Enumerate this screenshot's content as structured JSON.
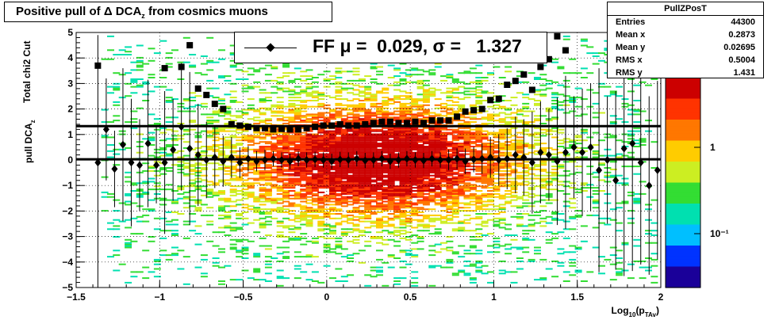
{
  "title": "Positive pull of Δ DCA_z from cosmics muons",
  "legend": {
    "label": "FF μ =  0.029, σ =   1.327"
  },
  "stats": {
    "name": "PullZPosT",
    "rows": [
      {
        "label": "Entries",
        "value": "44300"
      },
      {
        "label": "Mean x",
        "value": "0.2873"
      },
      {
        "label": "Mean y",
        "value": "0.02695"
      },
      {
        "label": "RMS x",
        "value": "0.5004"
      },
      {
        "label": "RMS y",
        "value": "1.431"
      }
    ]
  },
  "colorbar": {
    "ticks": [
      "1",
      "10⁻¹"
    ],
    "palette": [
      "#1a0099",
      "#0033ff",
      "#00bfff",
      "#00e0b0",
      "#33dd33",
      "#ccee22",
      "#ffcc00",
      "#ff7700",
      "#ff3300",
      "#cc0000"
    ]
  },
  "chart_data": {
    "type": "scatter",
    "title": "Positive pull of Δ DCA_z from cosmics muons",
    "xlabel": "Log10(pTAv)",
    "ylabel": "pull DCAz",
    "ylabel_secondary": "Total chi2 Cut",
    "xlim": [
      -1.5,
      2.0
    ],
    "ylim": [
      -5,
      5
    ],
    "x_ticks": [
      "−1.5",
      "−1",
      "−0.5",
      "0",
      "0.5",
      "1",
      "1.5",
      "2"
    ],
    "y_ticks": [
      "−5",
      "−4",
      "−3",
      "−2",
      "−1",
      "0",
      "1",
      "2",
      "3",
      "4",
      "5"
    ],
    "grid": true,
    "series": [
      {
        "name": "mean",
        "marker": "diamond",
        "x": [
          -1.37,
          -1.32,
          -1.27,
          -1.22,
          -1.17,
          -1.12,
          -1.07,
          -1.02,
          -0.97,
          -0.92,
          -0.87,
          -0.82,
          -0.77,
          -0.72,
          -0.67,
          -0.62,
          -0.57,
          -0.52,
          -0.47,
          -0.42,
          -0.37,
          -0.32,
          -0.27,
          -0.22,
          -0.17,
          -0.12,
          -0.07,
          -0.02,
          0.03,
          0.08,
          0.13,
          0.18,
          0.23,
          0.28,
          0.33,
          0.38,
          0.43,
          0.48,
          0.53,
          0.58,
          0.63,
          0.68,
          0.73,
          0.78,
          0.83,
          0.88,
          0.93,
          0.98,
          1.03,
          1.08,
          1.13,
          1.18,
          1.23,
          1.28,
          1.33,
          1.38,
          1.43,
          1.48,
          1.53,
          1.58,
          1.63,
          1.68,
          1.73,
          1.78,
          1.83,
          1.88,
          1.93,
          1.98
        ],
        "y": [
          -0.1,
          1.2,
          -0.35,
          0.6,
          -0.1,
          -0.2,
          0.65,
          -0.2,
          -0.1,
          0.4,
          1.3,
          0.45,
          0.2,
          0.0,
          0.1,
          -0.05,
          0.1,
          -0.1,
          0.05,
          -0.05,
          0.0,
          0.05,
          0.0,
          -0.05,
          0.05,
          0.0,
          0.02,
          0.0,
          -0.05,
          0.02,
          0.0,
          0.05,
          -0.02,
          0.0,
          0.05,
          -0.05,
          0.0,
          0.05,
          0.0,
          -0.02,
          0.05,
          0.0,
          0.0,
          0.05,
          -0.05,
          0.02,
          0.05,
          0.1,
          0.0,
          0.05,
          0.2,
          0.1,
          -0.1,
          0.3,
          0.2,
          -0.05,
          0.3,
          0.5,
          0.3,
          0.5,
          -0.4,
          0.0,
          -0.8,
          0.45,
          0.65,
          -0.1,
          -1.0,
          -0.4
        ],
        "yerr": [
          5.0,
          2.0,
          1.5,
          3.0,
          2.5,
          1.8,
          2.5,
          1.5,
          2.8,
          2.0,
          2.5,
          3.0,
          2.0,
          1.5,
          1.2,
          1.0,
          0.8,
          0.6,
          0.5,
          0.4,
          0.4,
          0.3,
          0.3,
          0.3,
          0.3,
          0.3,
          0.3,
          0.3,
          0.3,
          0.3,
          0.3,
          0.3,
          0.3,
          0.3,
          0.3,
          0.3,
          0.3,
          0.3,
          0.3,
          0.3,
          0.3,
          0.3,
          0.4,
          0.4,
          0.5,
          0.5,
          0.6,
          0.8,
          1.0,
          1.2,
          1.5,
          1.5,
          2.0,
          2.0,
          1.8,
          2.5,
          3.0,
          2.0,
          2.5,
          2.5,
          4.0,
          2.5,
          3.5,
          5.0,
          5.0,
          4.0,
          3.5,
          3.5
        ]
      },
      {
        "name": "sigma",
        "marker": "square",
        "x": [
          -1.37,
          -0.97,
          -0.87,
          -0.82,
          -0.77,
          -0.72,
          -0.67,
          -0.62,
          -0.57,
          -0.52,
          -0.47,
          -0.42,
          -0.37,
          -0.32,
          -0.27,
          -0.22,
          -0.17,
          -0.12,
          -0.07,
          -0.02,
          0.03,
          0.08,
          0.13,
          0.18,
          0.23,
          0.28,
          0.33,
          0.38,
          0.43,
          0.48,
          0.53,
          0.58,
          0.63,
          0.68,
          0.73,
          0.78,
          0.83,
          0.88,
          0.93,
          0.98,
          1.03,
          1.08,
          1.13,
          1.18,
          1.23,
          1.28,
          1.33,
          1.38,
          1.43
        ],
        "y": [
          3.7,
          3.6,
          3.65,
          4.5,
          2.8,
          2.55,
          2.2,
          2.0,
          1.4,
          1.35,
          1.3,
          1.25,
          1.25,
          1.2,
          1.22,
          1.2,
          1.2,
          1.25,
          1.3,
          1.35,
          1.35,
          1.4,
          1.35,
          1.35,
          1.4,
          1.45,
          1.5,
          1.5,
          1.45,
          1.45,
          1.5,
          1.45,
          1.55,
          1.55,
          1.55,
          1.7,
          1.9,
          1.95,
          2.0,
          2.35,
          2.4,
          2.95,
          3.1,
          3.35,
          2.75,
          3.65,
          3.95,
          4.85,
          4.3
        ]
      }
    ],
    "fit_lines": [
      {
        "name": "mean fit",
        "y": 0.029
      },
      {
        "name": "sigma fit",
        "y": 1.327
      }
    ],
    "density": {
      "x_center": 0.2873,
      "y_center": 0.02695,
      "x_rms": 0.5004,
      "y_rms": 1.431,
      "entries": 44300
    }
  }
}
